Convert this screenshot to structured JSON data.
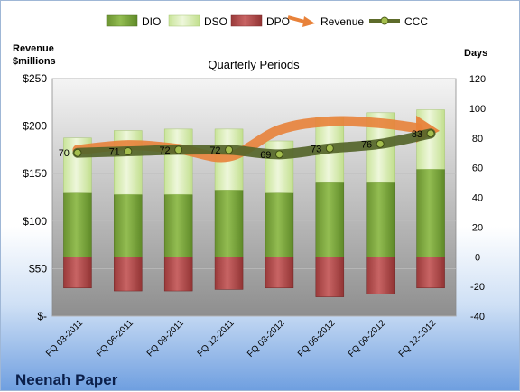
{
  "chart_data": {
    "type": "bar",
    "title": "Quarterly Periods",
    "company": "Neenah Paper",
    "y_left_label_line1": "Revenue",
    "y_left_label_line2": "$millions",
    "y_right_label": "Days",
    "categories": [
      "FQ 03-2011",
      "FQ 06-2011",
      "FQ 09-2011",
      "FQ 12-2011",
      "FQ 03-2012",
      "FQ 06-2012",
      "FQ 09-2012",
      "FQ 12-2012"
    ],
    "y_left_ticks": [
      "$-",
      "$50",
      "$100",
      "$150",
      "$200",
      "$250"
    ],
    "y_left_range": [
      0,
      250
    ],
    "y_right_ticks": [
      "-40",
      "-20",
      "0",
      "20",
      "40",
      "60",
      "80",
      "100",
      "120"
    ],
    "y_right_range": [
      -40,
      120
    ],
    "series": [
      {
        "name": "DIO",
        "values": [
          43,
          42,
          42,
          45,
          43,
          50,
          50,
          59
        ],
        "color": "#7aa23c"
      },
      {
        "name": "DSO",
        "values": [
          37,
          43,
          44,
          41,
          35,
          44,
          47,
          40
        ],
        "color": "#d8ecb0"
      },
      {
        "name": "DPO",
        "values": [
          -21,
          -23,
          -23,
          -22,
          -21,
          -27,
          -25,
          -21
        ],
        "color": "#b34a4a"
      },
      {
        "name": "Revenue",
        "values": [
          175,
          180,
          176,
          168,
          196,
          205,
          203,
          195
        ],
        "color": "#e8823a"
      },
      {
        "name": "CCC",
        "values": [
          70,
          71,
          72,
          72,
          69,
          73,
          76,
          83
        ],
        "color": "#5d6b2a"
      }
    ],
    "ccc_labels": [
      "70",
      "71",
      "72",
      "72",
      "69",
      "73",
      "76",
      "83"
    ]
  }
}
